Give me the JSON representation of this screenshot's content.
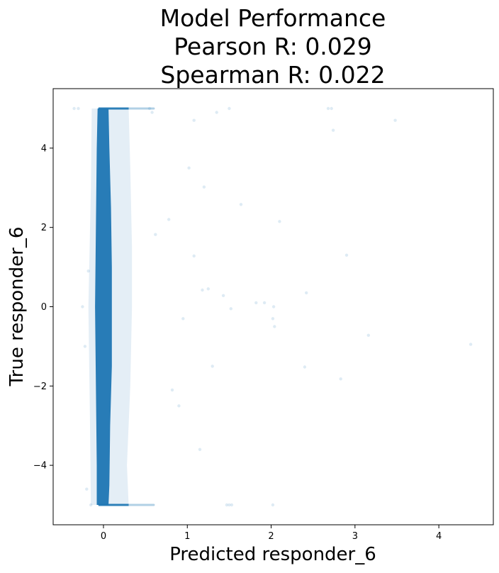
{
  "chart_data": {
    "type": "scatter",
    "title": [
      "Model Performance",
      "Pearson R: 0.029",
      "Spearman R: 0.022"
    ],
    "xlabel": "Predicted responder_6",
    "ylabel": "True responder_6",
    "xlim": [
      -0.6,
      4.65
    ],
    "ylim": [
      -5.5,
      5.5
    ],
    "xticks": [
      0,
      1,
      2,
      3,
      4
    ],
    "yticks": [
      -4,
      -2,
      0,
      2,
      4
    ],
    "xtick_labels": [
      "0",
      "1",
      "2",
      "3",
      "4"
    ],
    "ytick_labels": [
      "−4",
      "−2",
      "0",
      "2",
      "4"
    ],
    "grid": false,
    "series": [
      {
        "color": "#1f77b4",
        "alpha": 0.15,
        "points": [
          [
            4.38,
            -0.95
          ],
          [
            3.48,
            4.7
          ],
          [
            3.16,
            -0.72
          ],
          [
            2.9,
            1.3
          ],
          [
            2.83,
            -1.82
          ],
          [
            2.74,
            4.45
          ],
          [
            2.72,
            5.0
          ],
          [
            2.68,
            5.0
          ],
          [
            2.42,
            0.35
          ],
          [
            2.4,
            -1.52
          ],
          [
            2.1,
            2.15
          ],
          [
            2.04,
            -0.5
          ],
          [
            2.03,
            0.0
          ],
          [
            2.02,
            -0.3
          ],
          [
            2.02,
            -5.0
          ],
          [
            1.92,
            0.1
          ],
          [
            1.82,
            0.1
          ],
          [
            1.64,
            2.58
          ],
          [
            1.53,
            -5.0
          ],
          [
            1.5,
            -5.0
          ],
          [
            1.52,
            -0.05
          ],
          [
            1.5,
            5.0
          ],
          [
            1.47,
            -5.0
          ],
          [
            1.43,
            0.28
          ],
          [
            1.35,
            4.9
          ],
          [
            1.3,
            -1.5
          ],
          [
            1.25,
            0.45
          ],
          [
            1.2,
            3.02
          ],
          [
            1.18,
            0.42
          ],
          [
            1.15,
            -3.6
          ],
          [
            1.08,
            1.28
          ],
          [
            1.08,
            4.7
          ],
          [
            1.02,
            3.5
          ],
          [
            0.95,
            -0.3
          ],
          [
            0.9,
            -2.5
          ],
          [
            0.82,
            -2.1
          ],
          [
            0.78,
            2.2
          ],
          [
            0.62,
            1.82
          ],
          [
            0.58,
            4.9
          ],
          [
            0.55,
            5.0
          ],
          [
            -0.35,
            5.0
          ],
          [
            -0.3,
            5.0
          ],
          [
            -0.22,
            -1.0
          ],
          [
            -0.18,
            0.9
          ],
          [
            -0.25,
            0.0
          ],
          [
            -0.2,
            -4.6
          ],
          [
            -0.15,
            -5.0
          ]
        ]
      }
    ]
  }
}
